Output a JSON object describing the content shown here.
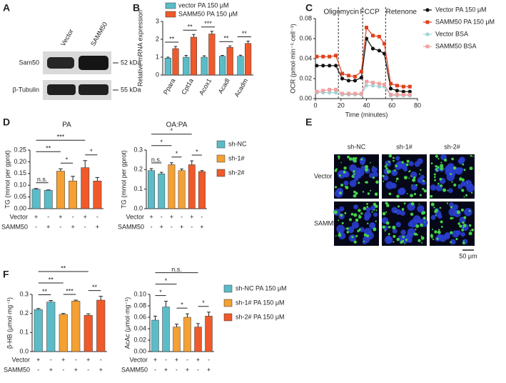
{
  "panel_letters": [
    "A",
    "B",
    "C",
    "D",
    "E",
    "F"
  ],
  "blot": {
    "lanes": [
      "Vector",
      "SAMM50"
    ],
    "rows": [
      {
        "name": "Sam50",
        "size": "52 kDa"
      },
      {
        "name": "β-Tubulin",
        "size": "55 kDa"
      }
    ]
  },
  "micrograph": {
    "columns": [
      "sh-NC",
      "sh-1#",
      "sh-2#"
    ],
    "rows": [
      "Vector",
      "SAMM50"
    ],
    "scale_bar": "50 μm"
  },
  "chart_data": [
    {
      "type": "bar",
      "ylabel": "Relative mRNA expression",
      "categories": [
        "Ppara",
        "Cpt1a",
        "Acox1",
        "Acadl",
        "Acadm"
      ],
      "series": [
        {
          "name": "vector PA 150 μM",
          "color": "#5bbcc8",
          "values": [
            0.95,
            1.0,
            1.0,
            1.05,
            1.05
          ],
          "errors": [
            0.05,
            0.1,
            0.08,
            0.05,
            0.06
          ]
        },
        {
          "name": "SAMM50 PA 150 μM",
          "color": "#f0592a",
          "values": [
            1.48,
            2.12,
            2.3,
            1.55,
            1.77
          ],
          "errors": [
            0.12,
            0.15,
            0.15,
            0.08,
            0.13
          ]
        }
      ],
      "ylim": [
        0,
        3
      ],
      "yticks": [
        0,
        1,
        2,
        3
      ],
      "significance": [
        "**",
        "**",
        "***",
        "**",
        "**"
      ]
    },
    {
      "type": "line",
      "xlabel": "Time (minutes)",
      "ylabel": "OCR (pmol·min⁻¹·cell⁻¹)",
      "x": [
        1,
        6,
        11,
        16,
        21,
        26,
        31,
        36,
        40,
        45,
        50,
        54,
        59,
        64,
        69,
        74
      ],
      "series": [
        {
          "name": "Vector PA 150 μM",
          "color": "#111111",
          "marker": "circle",
          "values": [
            0.033,
            0.033,
            0.033,
            0.033,
            0.02,
            0.018,
            0.018,
            0.021,
            0.06,
            0.05,
            0.048,
            0.045,
            0.01,
            0.008,
            0.007,
            0.007
          ]
        },
        {
          "name": "SAMM50 PA 150 μM",
          "color": "#e0401e",
          "marker": "square",
          "values": [
            0.042,
            0.042,
            0.042,
            0.043,
            0.025,
            0.023,
            0.022,
            0.027,
            0.071,
            0.063,
            0.062,
            0.055,
            0.015,
            0.013,
            0.012,
            0.012
          ]
        },
        {
          "name": "Vector BSA",
          "color": "#9fd4d8",
          "marker": "circle",
          "values": [
            0.006,
            0.006,
            0.006,
            0.006,
            0.004,
            0.004,
            0.004,
            0.004,
            0.013,
            0.013,
            0.012,
            0.012,
            0.003,
            0.003,
            0.003,
            0.003
          ]
        },
        {
          "name": "SAMM50 BSA",
          "color": "#f2a0a0",
          "marker": "square",
          "values": [
            0.007,
            0.008,
            0.009,
            0.009,
            0.005,
            0.005,
            0.005,
            0.005,
            0.017,
            0.016,
            0.015,
            0.014,
            0.004,
            0.004,
            0.004,
            0.004
          ]
        }
      ],
      "xlim": [
        0,
        80
      ],
      "xticks": [
        0,
        20,
        40,
        60,
        80
      ],
      "ylim": [
        0,
        0.08
      ],
      "yticks": [
        {
          "value": 0,
          "label": "0.00"
        },
        {
          "value": 0.02,
          "label": "0.02"
        },
        {
          "value": 0.04,
          "label": "0.04"
        },
        {
          "value": 0.06,
          "label": "0.06"
        },
        {
          "value": 0.08,
          "label": "0.08"
        }
      ],
      "events": [
        {
          "x": 18,
          "label": "Oligomycin"
        },
        {
          "x": 37,
          "label": "FCCP"
        },
        {
          "x": 55,
          "label": "Retenone"
        }
      ]
    },
    {
      "type": "bar",
      "title": "PA",
      "ylabel": "TG (mmol per gprot)",
      "series": [
        {
          "color": "#5bbcc8",
          "values": [
            0.083,
            0.078
          ],
          "errors": [
            0.003,
            0.002
          ]
        },
        {
          "color": "#f5a033",
          "values": [
            0.16,
            0.118
          ],
          "errors": [
            0.01,
            0.02
          ]
        },
        {
          "color": "#f0592a",
          "values": [
            0.175,
            0.118
          ],
          "errors": [
            0.03,
            0.015
          ]
        }
      ],
      "ylim": [
        0,
        0.25
      ],
      "yticks": [
        {
          "value": 0,
          "label": "0.00"
        },
        {
          "value": 0.05,
          "label": "0.05"
        },
        {
          "value": 0.1,
          "label": "0.10"
        },
        {
          "value": 0.15,
          "label": "0.15"
        },
        {
          "value": 0.2,
          "label": "0.20"
        },
        {
          "value": 0.25,
          "label": "0.25"
        }
      ],
      "conditions": [
        {
          "label": "Vector",
          "signs": [
            "+",
            "-",
            "+",
            "-",
            "+",
            "-"
          ]
        },
        {
          "label": "SAMM50",
          "signs": [
            "-",
            "+",
            "-",
            "+",
            "-",
            "+"
          ]
        }
      ],
      "significance": [
        {
          "from": 0,
          "to": 1,
          "label": "n.s."
        },
        {
          "from": 0,
          "to": 2,
          "label": "**"
        },
        {
          "from": 2,
          "to": 3,
          "label": "*"
        },
        {
          "from": 0,
          "to": 4,
          "label": "***"
        },
        {
          "from": 4,
          "to": 5,
          "label": "*"
        }
      ]
    },
    {
      "type": "bar",
      "title": "OA:PA",
      "ylabel": "TG (mmol per gprot)",
      "series": [
        {
          "name": "sh-NC",
          "color": "#5bbcc8",
          "values": [
            0.195,
            0.178
          ],
          "errors": [
            0.01,
            0.008
          ]
        },
        {
          "name": "sh-1#",
          "color": "#f5a033",
          "values": [
            0.225,
            0.195
          ],
          "errors": [
            0.01,
            0.008
          ]
        },
        {
          "name": "sh-2#",
          "color": "#f0592a",
          "values": [
            0.225,
            0.19
          ],
          "errors": [
            0.02,
            0.005
          ]
        }
      ],
      "ylim": [
        0,
        0.3
      ],
      "yticks": [
        {
          "value": 0,
          "label": "0.0"
        },
        {
          "value": 0.1,
          "label": "0.1"
        },
        {
          "value": 0.2,
          "label": "0.2"
        },
        {
          "value": 0.3,
          "label": "0.3"
        }
      ],
      "conditions": [
        {
          "label": "Vector",
          "signs": [
            "+",
            "-",
            "+",
            "-",
            "+",
            "-"
          ]
        },
        {
          "label": "SAMM50",
          "signs": [
            "-",
            "+",
            "-",
            "+",
            "-",
            "+"
          ]
        }
      ],
      "significance": [
        {
          "from": 0,
          "to": 1,
          "label": "n.s."
        },
        {
          "from": 0,
          "to": 2,
          "label": "*"
        },
        {
          "from": 2,
          "to": 3,
          "label": "*"
        },
        {
          "from": 0,
          "to": 4,
          "label": "*"
        },
        {
          "from": 4,
          "to": 5,
          "label": "*"
        }
      ]
    },
    {
      "type": "bar",
      "ylabel": "β-HB (μmol·mg⁻¹)",
      "series": [
        {
          "color": "#5bbcc8",
          "values": [
            0.22,
            0.26
          ],
          "errors": [
            0.006,
            0.008
          ]
        },
        {
          "color": "#f5a033",
          "values": [
            0.195,
            0.265
          ],
          "errors": [
            0.005,
            0.005
          ]
        },
        {
          "color": "#f0592a",
          "values": [
            0.19,
            0.27
          ],
          "errors": [
            0.008,
            0.02
          ]
        }
      ],
      "ylim": [
        0,
        0.3
      ],
      "yticks": [
        {
          "value": 0,
          "label": "0.0"
        },
        {
          "value": 0.1,
          "label": "0.1"
        },
        {
          "value": 0.2,
          "label": "0.2"
        },
        {
          "value": 0.3,
          "label": "0.3"
        }
      ],
      "conditions": [
        {
          "label": "Vector",
          "signs": [
            "+",
            "-",
            "+",
            "-",
            "+",
            "-"
          ]
        },
        {
          "label": "SAMM50",
          "signs": [
            "-",
            "+",
            "-",
            "+",
            "-",
            "+"
          ]
        }
      ],
      "significance": [
        {
          "from": 0,
          "to": 1,
          "label": "**"
        },
        {
          "from": 0,
          "to": 2,
          "label": "**"
        },
        {
          "from": 2,
          "to": 3,
          "label": "***"
        },
        {
          "from": 0,
          "to": 4,
          "label": "**"
        },
        {
          "from": 4,
          "to": 5,
          "label": "**"
        }
      ]
    },
    {
      "type": "bar",
      "ylabel": "AcAc (μmol·mg⁻¹)",
      "series": [
        {
          "name": "sh-NC PA 150 μM",
          "color": "#5bbcc8",
          "values": [
            0.055,
            0.078
          ],
          "errors": [
            0.007,
            0.01
          ]
        },
        {
          "name": "sh-1# PA 150 μM",
          "color": "#f5a033",
          "values": [
            0.043,
            0.06
          ],
          "errors": [
            0.005,
            0.006
          ]
        },
        {
          "name": "sh-2# PA 150 μM",
          "color": "#f0592a",
          "values": [
            0.043,
            0.062
          ],
          "errors": [
            0.006,
            0.007
          ]
        }
      ],
      "ylim": [
        0,
        0.1
      ],
      "yticks": [
        {
          "value": 0,
          "label": "0.00"
        },
        {
          "value": 0.02,
          "label": "0.02"
        },
        {
          "value": 0.04,
          "label": "0.04"
        },
        {
          "value": 0.06,
          "label": "0.06"
        },
        {
          "value": 0.08,
          "label": "0.08"
        },
        {
          "value": 0.1,
          "label": "0.10"
        }
      ],
      "conditions": [
        {
          "label": "Vector",
          "signs": [
            "+",
            "-",
            "+",
            "-",
            "+",
            "-"
          ]
        },
        {
          "label": "SAMM50",
          "signs": [
            "-",
            "+",
            "-",
            "+",
            "-",
            "+"
          ]
        }
      ],
      "significance": [
        {
          "from": 0,
          "to": 1,
          "label": "*"
        },
        {
          "from": 0,
          "to": 2,
          "label": "*"
        },
        {
          "from": 2,
          "to": 3,
          "label": "*"
        },
        {
          "from": 0,
          "to": 4,
          "label": "n.s."
        },
        {
          "from": 4,
          "to": 5,
          "label": "*"
        }
      ]
    }
  ]
}
